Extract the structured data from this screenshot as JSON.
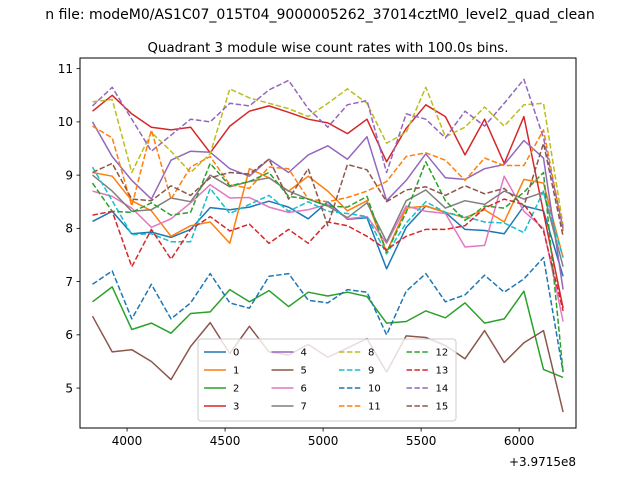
{
  "chart_data": {
    "type": "line",
    "suptitle": "n file: modeM0/AS1C07_015T04_9000005262_37014cztM0_level2_quad_clean",
    "title": "Quadrant 3 module wise count rates with 100.0s bins.",
    "xlabel": "",
    "ylabel": "",
    "x_offset_label": "+3.9715e8",
    "xlim": [
      3760,
      6290
    ],
    "ylim": [
      4.25,
      11.2
    ],
    "xticks": [
      4000,
      4500,
      5000,
      5500,
      6000
    ],
    "yticks": [
      5,
      6,
      7,
      8,
      9,
      10,
      11
    ],
    "grid": false,
    "legend": {
      "position": "lower center",
      "columns": 4
    },
    "x": [
      3824,
      3924,
      4024,
      4124,
      4224,
      4324,
      4424,
      4524,
      4624,
      4724,
      4824,
      4924,
      5024,
      5124,
      5224,
      5324,
      5424,
      5524,
      5624,
      5724,
      5824,
      5924,
      6024,
      6124,
      6224
    ],
    "series": [
      {
        "name": "0",
        "color": "#1f77b4",
        "dash": "solid",
        "values": [
          8.13,
          8.32,
          7.9,
          7.93,
          7.83,
          7.98,
          8.39,
          8.35,
          8.4,
          8.51,
          8.4,
          8.18,
          8.5,
          8.17,
          8.2,
          7.24,
          8.02,
          8.42,
          8.3,
          7.98,
          7.96,
          7.9,
          8.42,
          8.33,
          7.1
        ]
      },
      {
        "name": "1",
        "color": "#ff7f0e",
        "dash": "solid",
        "values": [
          9.05,
          8.98,
          8.52,
          8.33,
          7.85,
          8.05,
          8.12,
          7.72,
          9.12,
          8.95,
          8.7,
          8.98,
          8.7,
          8.33,
          8.52,
          7.55,
          8.38,
          8.42,
          8.3,
          8.2,
          8.35,
          8.12,
          8.92,
          8.85,
          7.45
        ]
      },
      {
        "name": "2",
        "color": "#2ca02c",
        "dash": "solid",
        "values": [
          6.62,
          6.9,
          6.1,
          6.22,
          6.03,
          6.4,
          6.43,
          6.85,
          6.62,
          6.83,
          6.53,
          6.8,
          6.73,
          6.8,
          6.72,
          6.22,
          6.25,
          6.45,
          6.32,
          6.6,
          6.22,
          6.3,
          6.82,
          5.35,
          5.2
        ]
      },
      {
        "name": "3",
        "color": "#d62728",
        "dash": "solid",
        "values": [
          10.2,
          10.5,
          10.15,
          9.9,
          9.85,
          9.9,
          9.42,
          9.92,
          10.2,
          10.3,
          10.18,
          10.05,
          9.98,
          9.78,
          10.05,
          9.25,
          9.88,
          10.32,
          10.1,
          9.38,
          10.05,
          9.22,
          10.1,
          8.3,
          6.5
        ]
      },
      {
        "name": "4",
        "color": "#9467bd",
        "dash": "solid",
        "values": [
          10.0,
          9.35,
          8.9,
          8.55,
          9.28,
          9.45,
          9.43,
          9.12,
          8.98,
          9.3,
          9.05,
          9.38,
          9.55,
          9.3,
          9.72,
          8.52,
          8.9,
          9.4,
          8.95,
          8.92,
          9.12,
          9.2,
          9.65,
          9.32,
          6.85
        ]
      },
      {
        "name": "5",
        "color": "#8c564b",
        "dash": "solid",
        "values": [
          6.35,
          5.68,
          5.72,
          5.5,
          5.16,
          5.78,
          6.23,
          5.65,
          6.16,
          5.68,
          5.62,
          5.82,
          5.58,
          5.75,
          5.93,
          5.3,
          5.98,
          5.95,
          5.8,
          5.55,
          6.08,
          5.48,
          5.85,
          6.08,
          4.55
        ]
      },
      {
        "name": "6",
        "color": "#e377c2",
        "dash": "solid",
        "values": [
          8.7,
          8.6,
          8.38,
          8.02,
          8.18,
          8.48,
          8.82,
          8.57,
          8.58,
          8.4,
          8.3,
          8.35,
          8.45,
          8.18,
          8.22,
          7.72,
          8.42,
          8.32,
          8.28,
          7.65,
          7.68,
          8.98,
          8.32,
          8.0,
          6.25
        ]
      },
      {
        "name": "7",
        "color": "#7f7f7f",
        "dash": "solid",
        "values": [
          9.0,
          8.7,
          8.32,
          8.35,
          8.57,
          8.5,
          9.0,
          8.78,
          8.88,
          8.95,
          8.7,
          8.55,
          8.42,
          8.2,
          8.48,
          7.75,
          8.52,
          8.72,
          8.38,
          8.52,
          8.45,
          8.7,
          8.55,
          8.68,
          7.28
        ]
      },
      {
        "name": "8",
        "color": "#bcbd22",
        "dash": "dashed",
        "values": [
          10.38,
          10.42,
          9.05,
          9.8,
          9.45,
          9.05,
          9.4,
          10.62,
          10.45,
          10.35,
          10.25,
          10.1,
          10.35,
          10.62,
          10.35,
          9.6,
          9.8,
          10.65,
          9.72,
          9.9,
          10.28,
          9.92,
          10.32,
          10.35,
          8.05
        ]
      },
      {
        "name": "9",
        "color": "#17becf",
        "dash": "dashed",
        "values": [
          9.15,
          8.52,
          7.88,
          7.9,
          7.75,
          7.75,
          8.75,
          8.28,
          8.45,
          8.62,
          8.32,
          8.5,
          8.32,
          8.28,
          8.22,
          7.52,
          8.1,
          8.5,
          8.3,
          8.22,
          8.12,
          8.1,
          7.92,
          8.7,
          7.45
        ]
      },
      {
        "name": "10",
        "color": "#1f77b4",
        "dash": "dashed",
        "values": [
          6.95,
          7.2,
          6.3,
          6.95,
          6.3,
          6.6,
          7.15,
          6.6,
          6.5,
          7.1,
          7.15,
          6.65,
          6.6,
          6.85,
          6.8,
          6.0,
          6.82,
          7.15,
          6.62,
          6.75,
          7.12,
          6.8,
          7.05,
          7.45,
          5.3
        ]
      },
      {
        "name": "11",
        "color": "#ff7f0e",
        "dash": "dashed",
        "values": [
          9.92,
          9.7,
          8.42,
          9.85,
          8.55,
          9.15,
          9.35,
          8.82,
          8.75,
          9.15,
          9.12,
          8.55,
          8.5,
          8.58,
          8.7,
          8.88,
          9.35,
          9.42,
          9.28,
          8.9,
          9.32,
          9.18,
          9.18,
          9.85,
          7.95
        ]
      },
      {
        "name": "12",
        "color": "#2ca02c",
        "dash": "dashed",
        "values": [
          8.85,
          8.32,
          8.3,
          8.48,
          8.25,
          8.3,
          9.22,
          8.8,
          8.88,
          9.05,
          8.6,
          8.55,
          8.42,
          8.4,
          8.6,
          7.55,
          8.3,
          9.25,
          8.52,
          8.15,
          8.42,
          8.38,
          8.68,
          9.05,
          5.3
        ]
      },
      {
        "name": "13",
        "color": "#d62728",
        "dash": "dashed",
        "values": [
          8.25,
          8.32,
          7.28,
          7.98,
          7.42,
          7.98,
          8.22,
          7.95,
          8.08,
          7.72,
          7.98,
          7.72,
          8.12,
          8.05,
          7.85,
          7.6,
          7.85,
          7.98,
          7.98,
          8.05,
          8.38,
          8.55,
          8.45,
          7.95,
          6.45
        ]
      },
      {
        "name": "14",
        "color": "#9467bd",
        "dash": "dashed",
        "values": [
          10.3,
          10.65,
          10.05,
          9.45,
          9.75,
          10.05,
          10.0,
          10.35,
          10.3,
          10.6,
          10.78,
          10.25,
          9.9,
          10.32,
          10.4,
          9.05,
          10.15,
          10.05,
          9.7,
          10.2,
          9.92,
          10.35,
          10.8,
          9.7,
          8.0
        ]
      },
      {
        "name": "15",
        "color": "#8c564b",
        "dash": "dashed",
        "values": [
          9.05,
          9.22,
          8.55,
          8.52,
          8.8,
          8.62,
          8.95,
          9.05,
          9.02,
          9.3,
          8.55,
          9.12,
          8.05,
          9.2,
          9.1,
          8.5,
          8.72,
          8.78,
          8.62,
          8.8,
          8.65,
          8.75,
          8.42,
          9.6,
          7.85
        ]
      }
    ]
  }
}
